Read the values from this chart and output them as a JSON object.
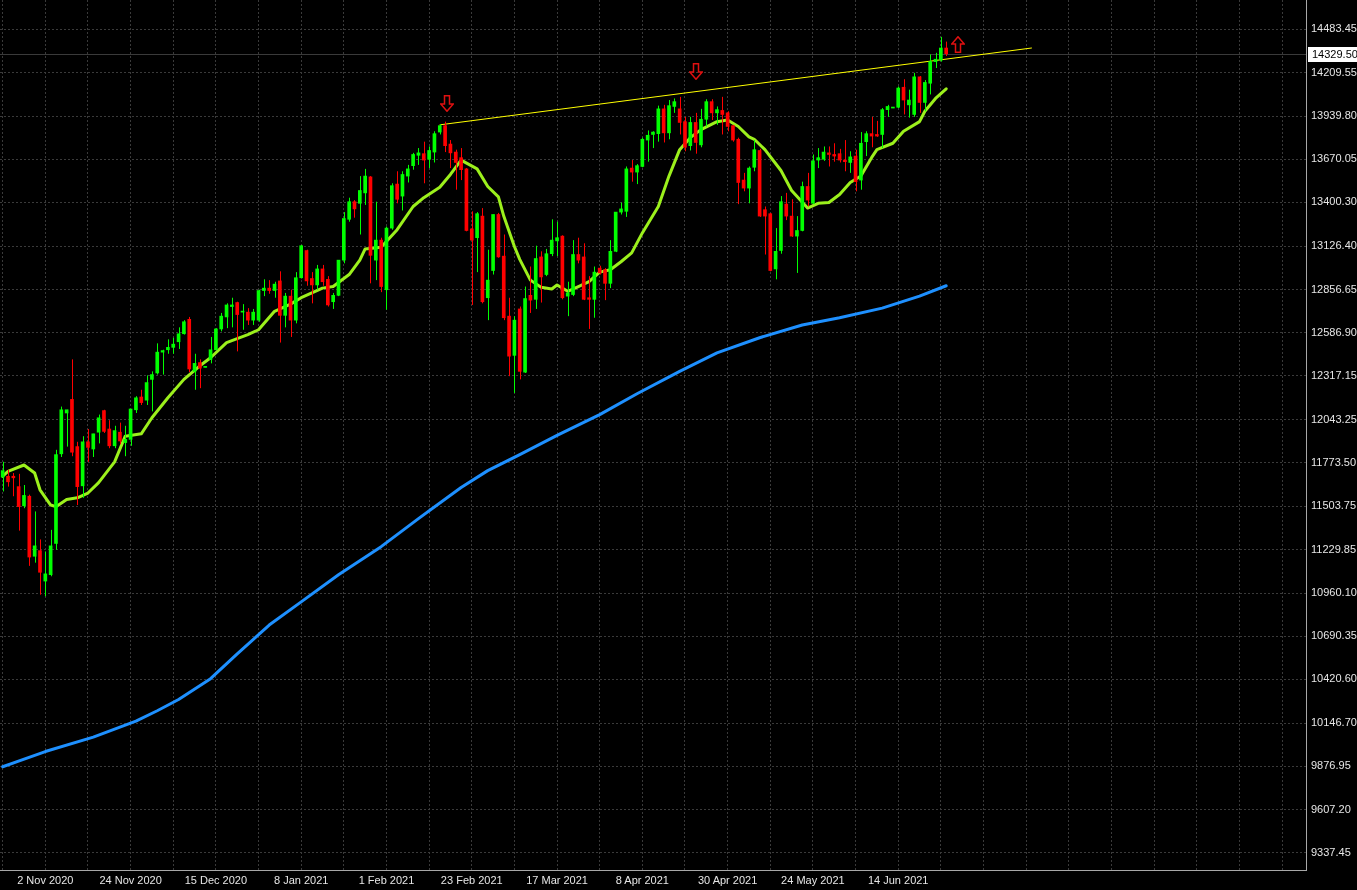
{
  "chart_data": {
    "type": "candlestick",
    "categories": [
      null,
      null,
      null,
      null,
      null,
      null,
      null,
      null,
      "2 Nov 2020",
      null,
      null,
      null,
      null,
      null,
      null,
      null,
      null,
      null,
      null,
      null,
      null,
      null,
      null,
      null,
      "24 Nov 2020",
      null,
      null,
      null,
      null,
      null,
      null,
      null,
      null,
      null,
      null,
      null,
      null,
      null,
      null,
      null,
      "15 Dec 2020",
      null,
      null,
      null,
      null,
      null,
      null,
      null,
      null,
      null,
      null,
      null,
      null,
      null,
      null,
      null,
      "8 Jan 2021",
      null,
      null,
      null,
      null,
      null,
      null,
      null,
      null,
      null,
      null,
      null,
      null,
      null,
      null,
      null,
      "1 Feb 2021",
      null,
      null,
      null,
      null,
      null,
      null,
      null,
      null,
      null,
      null,
      null,
      null,
      null,
      null,
      null,
      "23 Feb 2021",
      null,
      null,
      null,
      null,
      null,
      null,
      null,
      null,
      null,
      null,
      null,
      null,
      null,
      null,
      null,
      "17 Mar 2021",
      null,
      null,
      null,
      null,
      null,
      null,
      null,
      null,
      null,
      null,
      null,
      null,
      null,
      null,
      null,
      "8 Apr 2021",
      null,
      null,
      null,
      null,
      null,
      null,
      null,
      null,
      null,
      null,
      null,
      null,
      null,
      null,
      null,
      "30 Apr 2021",
      null,
      null,
      null,
      null,
      null,
      null,
      null,
      null,
      null,
      null,
      null,
      null,
      null,
      null,
      null,
      "24 May 2021",
      null,
      null,
      null,
      null,
      null,
      null,
      null,
      null,
      null,
      null,
      null,
      null,
      null,
      null,
      null,
      "14 Jun 2021",
      null,
      null,
      null,
      null,
      null,
      null,
      null,
      null,
      null,
      null,
      null,
      null,
      null,
      null,
      null,
      null,
      null,
      null,
      null,
      null,
      null,
      null,
      null,
      null,
      null,
      null,
      null,
      null,
      null,
      null,
      null,
      null,
      null,
      null,
      null,
      null,
      null,
      null,
      null,
      null,
      null,
      null,
      null,
      null,
      null,
      null,
      null,
      null,
      null,
      null,
      null,
      null,
      null,
      null,
      null,
      null,
      null,
      null,
      null,
      null,
      null,
      null,
      null,
      null,
      null,
      null,
      null,
      null,
      null,
      null,
      null,
      null,
      null,
      null,
      null,
      null
    ],
    "ohlc": [
      [
        11685,
        11780,
        11595,
        11725
      ],
      [
        11690,
        11730,
        11625,
        11655
      ],
      [
        11690,
        11710,
        11565,
        11680
      ],
      [
        11625,
        11705,
        11350,
        11500
      ],
      [
        11505,
        11635,
        11490,
        11570
      ],
      [
        11565,
        11575,
        11130,
        11185
      ],
      [
        11190,
        11470,
        11150,
        11255
      ],
      [
        11225,
        11295,
        10950,
        11090
      ],
      [
        11035,
        11220,
        10940,
        11080
      ],
      [
        11075,
        11355,
        11065,
        11255
      ],
      [
        11270,
        11855,
        11230,
        11825
      ],
      [
        11830,
        12125,
        11810,
        12105
      ],
      [
        12085,
        12105,
        11875,
        12105
      ],
      [
        12170,
        12420,
        11815,
        11840
      ],
      [
        11875,
        11905,
        11510,
        11625
      ],
      [
        11630,
        11940,
        11555,
        11905
      ],
      [
        11905,
        11985,
        11780,
        11870
      ],
      [
        11860,
        11955,
        11810,
        11955
      ],
      [
        11965,
        12075,
        11895,
        12055
      ],
      [
        12100,
        12105,
        11960,
        11970
      ],
      [
        11985,
        12040,
        11865,
        11880
      ],
      [
        11880,
        12005,
        11865,
        11975
      ],
      [
        11965,
        12025,
        11890,
        11910
      ],
      [
        11900,
        12005,
        11815,
        11920
      ],
      [
        11920,
        12110,
        11880,
        12110
      ],
      [
        12105,
        12190,
        12085,
        12180
      ],
      [
        12185,
        12230,
        12135,
        12150
      ],
      [
        12165,
        12320,
        12135,
        12275
      ],
      [
        12295,
        12345,
        12095,
        12325
      ],
      [
        12335,
        12520,
        12325,
        12465
      ],
      [
        12465,
        12480,
        12325,
        12475
      ],
      [
        12480,
        12545,
        12455,
        12495
      ],
      [
        12495,
        12555,
        12455,
        12515
      ],
      [
        12530,
        12620,
        12485,
        12580
      ],
      [
        12580,
        12665,
        12575,
        12655
      ],
      [
        12670,
        12685,
        12340,
        12360
      ],
      [
        12345,
        12455,
        12230,
        12395
      ],
      [
        12400,
        12420,
        12240,
        12365
      ],
      [
        12370,
        12375,
        12370,
        12375
      ],
      [
        12420,
        12560,
        12395,
        12480
      ],
      [
        12480,
        12615,
        12480,
        12610
      ],
      [
        12610,
        12710,
        12595,
        12690
      ],
      [
        12685,
        12770,
        12615,
        12760
      ],
      [
        12750,
        12805,
        12620,
        12760
      ],
      [
        12775,
        12780,
        12470,
        12700
      ],
      [
        12715,
        12765,
        12605,
        12720
      ],
      [
        12715,
        12740,
        12635,
        12665
      ],
      [
        12665,
        12735,
        12635,
        12715
      ],
      [
        12665,
        12855,
        12655,
        12850
      ],
      [
        12850,
        12920,
        12815,
        12865
      ],
      [
        12865,
        12915,
        12830,
        12850
      ],
      [
        12850,
        12905,
        12805,
        12890
      ],
      [
        12910,
        12970,
        12525,
        12695
      ],
      [
        12695,
        12835,
        12620,
        12815
      ],
      [
        12815,
        12855,
        12560,
        12665
      ],
      [
        12665,
        12965,
        12645,
        12930
      ],
      [
        12930,
        13135,
        12925,
        13130
      ],
      [
        13100,
        13105,
        12880,
        12910
      ],
      [
        12925,
        12965,
        12770,
        12885
      ],
      [
        12885,
        13010,
        12855,
        12985
      ],
      [
        12985,
        13010,
        12880,
        12905
      ],
      [
        12920,
        12940,
        12750,
        12760
      ],
      [
        12780,
        12835,
        12735,
        12820
      ],
      [
        12820,
        13040,
        12815,
        13040
      ],
      [
        13040,
        13340,
        13020,
        13300
      ],
      [
        13295,
        13430,
        13280,
        13405
      ],
      [
        13405,
        13415,
        13305,
        13360
      ],
      [
        13395,
        13565,
        13200,
        13475
      ],
      [
        13460,
        13610,
        13385,
        13565
      ],
      [
        13560,
        13565,
        12895,
        13070
      ],
      [
        13040,
        13405,
        12915,
        13165
      ],
      [
        13165,
        13180,
        12840,
        12875
      ],
      [
        12855,
        13250,
        12730,
        13240
      ],
      [
        13240,
        13520,
        13230,
        13505
      ],
      [
        13515,
        13595,
        13395,
        13420
      ],
      [
        13440,
        13595,
        13350,
        13575
      ],
      [
        13565,
        13635,
        13525,
        13610
      ],
      [
        13630,
        13710,
        13605,
        13700
      ],
      [
        13695,
        13740,
        13635,
        13710
      ],
      [
        13705,
        13780,
        13520,
        13665
      ],
      [
        13670,
        13750,
        13615,
        13725
      ],
      [
        13715,
        13845,
        13650,
        13830
      ],
      [
        13840,
        13890,
        13825,
        13880
      ],
      [
        13880,
        13905,
        13715,
        13755
      ],
      [
        13765,
        13790,
        13615,
        13710
      ],
      [
        13715,
        13730,
        13480,
        13650
      ],
      [
        13680,
        13740,
        13540,
        13605
      ],
      [
        13610,
        13615,
        13220,
        13225
      ],
      [
        13235,
        13345,
        12760,
        13165
      ],
      [
        13180,
        13340,
        12965,
        13330
      ],
      [
        13315,
        13365,
        12770,
        12780
      ],
      [
        12805,
        13105,
        12665,
        12915
      ],
      [
        12975,
        13325,
        12950,
        13325
      ],
      [
        13325,
        13335,
        13055,
        13060
      ],
      [
        13065,
        13200,
        12665,
        12680
      ],
      [
        12690,
        12805,
        12315,
        12440
      ],
      [
        12445,
        12690,
        12210,
        12665
      ],
      [
        12735,
        12750,
        12295,
        12345
      ],
      [
        12340,
        12875,
        12335,
        12800
      ],
      [
        12820,
        13000,
        12710,
        12790
      ],
      [
        12795,
        13130,
        12735,
        13050
      ],
      [
        13060,
        13095,
        12775,
        12935
      ],
      [
        12950,
        13110,
        12940,
        13080
      ],
      [
        13080,
        13295,
        13065,
        13165
      ],
      [
        13160,
        13280,
        13065,
        13180
      ],
      [
        13190,
        13195,
        12795,
        12805
      ],
      [
        12815,
        12905,
        12690,
        12835
      ],
      [
        12825,
        13165,
        12815,
        13075
      ],
      [
        13075,
        13180,
        13020,
        13040
      ],
      [
        13060,
        13145,
        12790,
        12795
      ],
      [
        12805,
        12940,
        12610,
        12795
      ],
      [
        12795,
        13000,
        12680,
        12965
      ],
      [
        12990,
        13005,
        12950,
        12960
      ],
      [
        12980,
        12990,
        12790,
        12895
      ],
      [
        12895,
        13165,
        12865,
        13095
      ],
      [
        13095,
        13340,
        13090,
        13340
      ],
      [
        13340,
        13400,
        13325,
        13360
      ],
      [
        13345,
        13625,
        13310,
        13610
      ],
      [
        13615,
        13665,
        13530,
        13590
      ],
      [
        13590,
        13640,
        13515,
        13630
      ],
      [
        13625,
        13805,
        13620,
        13795
      ],
      [
        13790,
        13850,
        13655,
        13820
      ],
      [
        13825,
        13845,
        13740,
        13840
      ],
      [
        13830,
        14005,
        13780,
        13985
      ],
      [
        13985,
        14010,
        13775,
        13835
      ],
      [
        13835,
        14040,
        13795,
        14005
      ],
      [
        14000,
        14050,
        13960,
        14030
      ],
      [
        13985,
        14060,
        13825,
        13900
      ],
      [
        13905,
        13935,
        13720,
        13745
      ],
      [
        13755,
        13935,
        13725,
        13900
      ],
      [
        13900,
        13960,
        13705,
        13775
      ],
      [
        13760,
        13985,
        13745,
        13920
      ],
      [
        13920,
        14045,
        13875,
        14030
      ],
      [
        14030,
        14045,
        13915,
        13960
      ],
      [
        13960,
        14000,
        13885,
        13980
      ],
      [
        13975,
        14060,
        13825,
        13950
      ],
      [
        13960,
        13970,
        13845,
        13875
      ],
      [
        13880,
        13885,
        13780,
        13790
      ],
      [
        13795,
        13805,
        13390,
        13525
      ],
      [
        13540,
        13585,
        13470,
        13490
      ],
      [
        13490,
        13625,
        13395,
        13615
      ],
      [
        13620,
        13790,
        13595,
        13730
      ],
      [
        13725,
        13735,
        13310,
        13315
      ],
      [
        13355,
        13375,
        13075,
        13315
      ],
      [
        13330,
        13335,
        12970,
        12975
      ],
      [
        12985,
        13240,
        12920,
        13095
      ],
      [
        13100,
        13440,
        13080,
        13405
      ],
      [
        13390,
        13460,
        13290,
        13315
      ],
      [
        13315,
        13420,
        13185,
        13190
      ],
      [
        13190,
        13315,
        12960,
        13225
      ],
      [
        13225,
        13530,
        13220,
        13500
      ],
      [
        13500,
        13585,
        13375,
        13415
      ],
      [
        13395,
        13700,
        13390,
        13660
      ],
      [
        13665,
        13740,
        13615,
        13680
      ],
      [
        13670,
        13750,
        13660,
        13715
      ],
      [
        13710,
        13750,
        13625,
        13700
      ],
      [
        13700,
        13770,
        13655,
        13690
      ],
      [
        13705,
        13735,
        13650,
        13665
      ],
      [
        13665,
        13790,
        13595,
        13655
      ],
      [
        13650,
        13720,
        13585,
        13685
      ],
      [
        13690,
        13730,
        13470,
        13530
      ],
      [
        13540,
        13840,
        13480,
        13770
      ],
      [
        13780,
        13845,
        13690,
        13830
      ],
      [
        13830,
        13935,
        13745,
        13815
      ],
      [
        13825,
        13910,
        13810,
        13815
      ],
      [
        13825,
        13990,
        13740,
        13980
      ],
      [
        13980,
        14010,
        13935,
        14000
      ],
      [
        13990,
        13995,
        13990,
        13995
      ],
      [
        13995,
        14125,
        13990,
        14115
      ],
      [
        14120,
        14170,
        13950,
        14040
      ],
      [
        14010,
        14105,
        13930,
        14040
      ],
      [
        13950,
        14210,
        13935,
        14185
      ],
      [
        14185,
        14190,
        13960,
        14025
      ],
      [
        14025,
        14165,
        13970,
        14150
      ],
      [
        14145,
        14325,
        14075,
        14280
      ],
      [
        14280,
        14335,
        14240,
        14295
      ],
      [
        14290,
        14435,
        14280,
        14365
      ],
      [
        14365,
        14405,
        14315,
        14329.5
      ],
      null,
      null,
      null,
      null,
      null,
      null,
      null,
      null,
      null,
      null,
      null,
      null,
      null,
      null,
      null,
      null,
      null,
      null,
      null,
      null,
      null,
      null,
      null,
      null,
      null,
      null,
      null,
      null,
      null,
      null,
      null,
      null,
      null,
      null,
      null,
      null,
      null,
      null,
      null,
      null,
      null,
      null,
      null,
      null,
      null,
      null,
      null,
      null,
      null,
      null,
      null,
      null,
      null,
      null,
      null,
      null,
      null,
      null,
      null,
      null,
      null,
      null,
      null,
      null,
      null,
      null,
      null
    ],
    "colors": [
      "#00ff00",
      "#ff0000",
      "#ff0000",
      "#ff0000",
      "#00ff00",
      "#ff0000",
      "#00ff00",
      "#ff0000",
      "#00ff00",
      "#00ff00",
      "#00ff00",
      "#00ff00",
      "#00ff00",
      "#ff0000",
      "#ff0000",
      "#00ff00",
      "#ff0000",
      "#00ff00",
      "#00ff00",
      "#ff0000",
      "#ff0000",
      "#00ff00",
      "#ff0000",
      "#00ff00",
      "#00ff00",
      "#00ff00",
      "#ff0000",
      "#00ff00",
      "#00ff00",
      "#00ff00",
      "#00ff00",
      "#00ff00",
      "#00ff00",
      "#00ff00",
      "#00ff00",
      "#ff0000",
      "#00ff00",
      "#ff0000",
      "#00ff00",
      "#00ff00",
      "#00ff00",
      "#00ff00",
      "#00ff00",
      "#00ff00",
      "#ff0000",
      "#00ff00",
      "#ff0000",
      "#00ff00",
      "#00ff00",
      "#00ff00",
      "#ff0000",
      "#00ff00",
      "#ff0000",
      "#00ff00",
      "#ff0000",
      "#00ff00",
      "#00ff00",
      "#ff0000",
      "#ff0000",
      "#00ff00",
      "#ff0000",
      "#ff0000",
      "#00ff00",
      "#00ff00",
      "#00ff00",
      "#00ff00",
      "#ff0000",
      "#00ff00",
      "#00ff00",
      "#ff0000",
      "#00ff00",
      "#ff0000",
      "#00ff00",
      "#00ff00",
      "#ff0000",
      "#00ff00",
      "#00ff00",
      "#00ff00",
      "#00ff00",
      "#ff0000",
      "#00ff00",
      "#00ff00",
      "#00ff00",
      "#ff0000",
      "#ff0000",
      "#ff0000",
      "#ff0000",
      "#ff0000",
      "#ff0000",
      "#00ff00",
      "#ff0000",
      "#00ff00",
      "#00ff00",
      "#ff0000",
      "#ff0000",
      "#ff0000",
      "#00ff00",
      "#ff0000",
      "#00ff00",
      "#ff0000",
      "#00ff00",
      "#ff0000",
      "#00ff00",
      "#00ff00",
      "#00ff00",
      "#ff0000",
      "#00ff00",
      "#00ff00",
      "#ff0000",
      "#ff0000",
      "#ff0000",
      "#00ff00",
      "#ff0000",
      "#ff0000",
      "#00ff00",
      "#00ff00",
      "#00ff00",
      "#00ff00",
      "#ff0000",
      "#00ff00",
      "#00ff00",
      "#00ff00",
      "#00ff00",
      "#00ff00",
      "#ff0000",
      "#00ff00",
      "#00ff00",
      "#ff0000",
      "#ff0000",
      "#00ff00",
      "#ff0000",
      "#00ff00",
      "#00ff00",
      "#ff0000",
      "#00ff00",
      "#ff0000",
      "#ff0000",
      "#ff0000",
      "#ff0000",
      "#ff0000",
      "#00ff00",
      "#00ff00",
      "#ff0000",
      "#ff0000",
      "#ff0000",
      "#00ff00",
      "#00ff00",
      "#ff0000",
      "#ff0000",
      "#00ff00",
      "#00ff00",
      "#ff0000",
      "#00ff00",
      "#00ff00",
      "#00ff00",
      "#ff0000",
      "#ff0000",
      "#ff0000",
      "#ff0000",
      "#00ff00",
      "#ff0000",
      "#00ff00",
      "#00ff00",
      "#ff0000",
      "#ff0000",
      "#00ff00",
      "#00ff00",
      "#00ff00",
      "#00ff00",
      "#ff0000",
      "#00ff00",
      "#00ff00",
      "#ff0000",
      "#00ff00",
      "#00ff00",
      "#00ff00",
      "#00ff00",
      "#ff0000",
      null,
      null,
      null,
      null,
      null,
      null,
      null,
      null,
      null,
      null,
      null,
      null,
      null,
      null,
      null,
      null,
      null,
      null,
      null,
      null,
      null,
      null,
      null,
      null,
      null,
      null,
      null,
      null,
      null,
      null,
      null,
      null,
      null,
      null,
      null,
      null,
      null,
      null,
      null,
      null,
      null,
      null,
      null,
      null,
      null,
      null,
      null,
      null,
      null,
      null,
      null,
      null,
      null,
      null,
      null,
      null,
      null,
      null,
      null,
      null,
      null,
      null,
      null,
      null,
      null,
      null,
      null
    ],
    "series": [
      {
        "type": "line",
        "color": "#9cf01c",
        "values": [
          11690,
          11720,
          null,
          null,
          11760,
          null,
          11710,
          11605,
          null,
          11510,
          11500,
          null,
          11545,
          null,
          11555,
          null,
          11585,
          null,
          11650,
          null,
          null,
          11780,
          null,
          11940,
          null,
          null,
          11955,
          null,
          12055,
          null,
          null,
          12180,
          null,
          null,
          12295,
          null,
          null,
          12380,
          null,
          12430,
          null,
          null,
          12525,
          null,
          null,
          null,
          12575,
          null,
          12605,
          null,
          null,
          12720,
          null,
          null,
          12765,
          null,
          12805,
          null,
          null,
          null,
          12865,
          null,
          12875,
          null,
          null,
          12950,
          null,
          13040,
          13110,
          null,
          null,
          13120,
          null,
          null,
          13230,
          null,
          null,
          13375,
          null,
          13430,
          null,
          null,
          13495,
          null,
          13575,
          null,
          13665,
          null,
          null,
          13610,
          null,
          13500,
          null,
          13435,
          13315,
          null,
          13125,
          13045,
          null,
          12915,
          null,
          12870,
          null,
          12860,
          12885,
          null,
          12845,
          null,
          12875,
          null,
          12905,
          null,
          12965,
          null,
          12980,
          null,
          13030,
          null,
          13085,
          null,
          13210,
          null,
          null,
          13375,
          null,
          13565,
          null,
          13730,
          null,
          13805,
          null,
          13855,
          null,
          null,
          13905,
          null,
          13915,
          null,
          13875,
          null,
          13810,
          13795,
          null,
          13730,
          null,
          null,
          13600,
          null,
          13475,
          null,
          null,
          13365,
          null,
          13395,
          null,
          13400,
          null,
          13450,
          null,
          13525,
          null,
          13565,
          null,
          13680,
          13730,
          null,
          null,
          13770,
          null,
          13845,
          null,
          null,
          13905,
          13970,
          null,
          14050,
          null,
          14110,
          null,
          null,
          null,
          null,
          null,
          null,
          null,
          null,
          null,
          null,
          null,
          null,
          null,
          null,
          null,
          null,
          null,
          null,
          null,
          null,
          null,
          null,
          null,
          null,
          null,
          null,
          null,
          null,
          null,
          null,
          null,
          null,
          null,
          null,
          null,
          null,
          null,
          null,
          null,
          null,
          null,
          null,
          null,
          null,
          null,
          null,
          null,
          null,
          null,
          null,
          null,
          null,
          null,
          null,
          null,
          null,
          null,
          null,
          null,
          null,
          null,
          null,
          null,
          null,
          null,
          null,
          null
        ]
      },
      {
        "type": "line",
        "color": "#1e90ff",
        "values": [
          9875,
          null,
          null,
          null,
          null,
          null,
          null,
          null,
          9970,
          null,
          null,
          null,
          null,
          null,
          null,
          null,
          null,
          10060,
          null,
          null,
          null,
          null,
          null,
          null,
          null,
          10160,
          null,
          null,
          null,
          10225,
          null,
          null,
          null,
          10295,
          null,
          null,
          null,
          null,
          null,
          10425,
          null,
          null,
          null,
          null,
          10580,
          null,
          null,
          null,
          null,
          null,
          10760,
          null,
          null,
          null,
          null,
          null,
          10905,
          null,
          null,
          null,
          null,
          null,
          null,
          11075,
          null,
          null,
          null,
          null,
          null,
          null,
          null,
          11250,
          null,
          null,
          null,
          null,
          null,
          null,
          11425,
          null,
          null,
          null,
          null,
          null,
          null,
          null,
          11620,
          null,
          null,
          null,
          null,
          11725,
          null,
          null,
          null,
          null,
          null,
          11825,
          null,
          null,
          null,
          null,
          null,
          null,
          11945,
          null,
          null,
          null,
          null,
          null,
          null,
          null,
          12075,
          null,
          null,
          null,
          null,
          null,
          null,
          12205,
          null,
          null,
          null,
          null,
          null,
          null,
          null,
          12345,
          null,
          null,
          null,
          null,
          null,
          null,
          12460,
          null,
          null,
          null,
          null,
          null,
          null,
          null,
          12555,
          null,
          null,
          null,
          null,
          null,
          null,
          null,
          12635,
          null,
          null,
          null,
          null,
          null,
          null,
          12680,
          null,
          null,
          null,
          null,
          null,
          null,
          null,
          12740,
          null,
          null,
          null,
          null,
          null,
          null,
          12815,
          null,
          null,
          null,
          null,
          12880,
          null,
          null,
          null,
          null,
          null,
          null,
          null,
          null,
          null,
          null,
          null,
          null,
          null,
          null,
          null,
          null,
          null,
          null,
          null,
          null,
          null,
          null,
          null,
          null,
          null,
          null,
          null,
          null,
          null,
          null,
          null,
          null,
          null,
          null,
          null,
          null,
          null,
          null,
          null,
          null,
          null,
          null,
          null,
          null,
          null,
          null,
          null,
          null,
          null,
          null,
          null,
          null,
          null,
          null,
          null,
          null,
          null,
          null,
          null,
          null,
          null,
          null,
          null,
          null,
          null,
          null,
          null
        ]
      },
      {
        "type": "line",
        "color": "#ffff00",
        "values": [
          null,
          null,
          null,
          null,
          null,
          null,
          null,
          null,
          null,
          null,
          null,
          null,
          null,
          null,
          null,
          null,
          null,
          null,
          null,
          null,
          null,
          null,
          null,
          null,
          null,
          null,
          null,
          null,
          null,
          null,
          null,
          null,
          null,
          null,
          null,
          null,
          null,
          null,
          null,
          null,
          null,
          null,
          null,
          null,
          null,
          null,
          null,
          null,
          null,
          null,
          null,
          null,
          null,
          null,
          null,
          null,
          null,
          null,
          null,
          null,
          null,
          null,
          null,
          null,
          null,
          null,
          null,
          null,
          null,
          null,
          null,
          null,
          null,
          null,
          null,
          null,
          null,
          null,
          null,
          null,
          null,
          null,
          13885,
          null,
          null,
          null,
          null,
          null,
          null,
          null,
          null,
          null,
          null,
          null,
          null,
          null,
          null,
          null,
          null,
          null,
          null,
          null,
          null,
          null,
          null,
          null,
          null,
          null,
          null,
          null,
          null,
          null,
          null,
          null,
          null,
          null,
          null,
          null,
          null,
          null,
          null,
          null,
          null,
          null,
          null,
          null,
          null,
          null,
          null,
          null,
          null,
          null,
          null,
          null,
          null,
          null,
          null,
          null,
          null,
          null,
          null,
          null,
          null,
          null,
          null,
          null,
          null,
          null,
          null,
          null,
          null,
          null,
          null,
          null,
          null,
          null,
          null,
          null,
          null,
          null,
          null,
          null,
          null,
          null,
          null,
          null,
          null,
          null,
          null,
          null,
          null,
          null,
          null,
          null,
          null,
          null,
          null,
          null,
          null,
          null,
          null,
          null,
          null,
          null,
          null,
          null,
          null,
          null,
          null,
          null,
          null,
          null,
          null,
          14365,
          null,
          null,
          null,
          null,
          null,
          null,
          null,
          null,
          null,
          null,
          null,
          null,
          null,
          null,
          null,
          null,
          null,
          null,
          null,
          null,
          null,
          null,
          null,
          null,
          null,
          null,
          null,
          null,
          null,
          null,
          null,
          null,
          null,
          null,
          null,
          null,
          null,
          null,
          null,
          null,
          null,
          null,
          null,
          null,
          null,
          null,
          null,
          null,
          null,
          null,
          null
        ]
      }
    ],
    "ylim": [
      9230,
      14665
    ],
    "yticks": [
      9337.45,
      {
        "value": 9607.2,
        "label": "9607.20"
      },
      9876.95,
      {
        "value": 10146.7,
        "label": "10146.70"
      },
      {
        "value": 10420.6,
        "label": "10420.60"
      },
      10690.35,
      {
        "value": 10960.1,
        "label": "10960.10"
      },
      11229.85,
      11503.75,
      {
        "value": 11773.5,
        "label": "11773.50"
      },
      12043.25,
      12317.15,
      {
        "value": 12586.9,
        "label": "12586.90"
      },
      12856.65,
      {
        "value": 13126.4,
        "label": "13126.40"
      },
      {
        "value": 13400.3,
        "label": "13400.30"
      },
      13670.05,
      {
        "value": 13939.8,
        "label": "13939.80"
      },
      14209.55,
      14483.45
    ],
    "ref_lines": [
      {
        "axis": "y",
        "value": 14329.5,
        "label": "14329.50",
        "color": "#3a3a3a"
      }
    ],
    "grid": true
  }
}
